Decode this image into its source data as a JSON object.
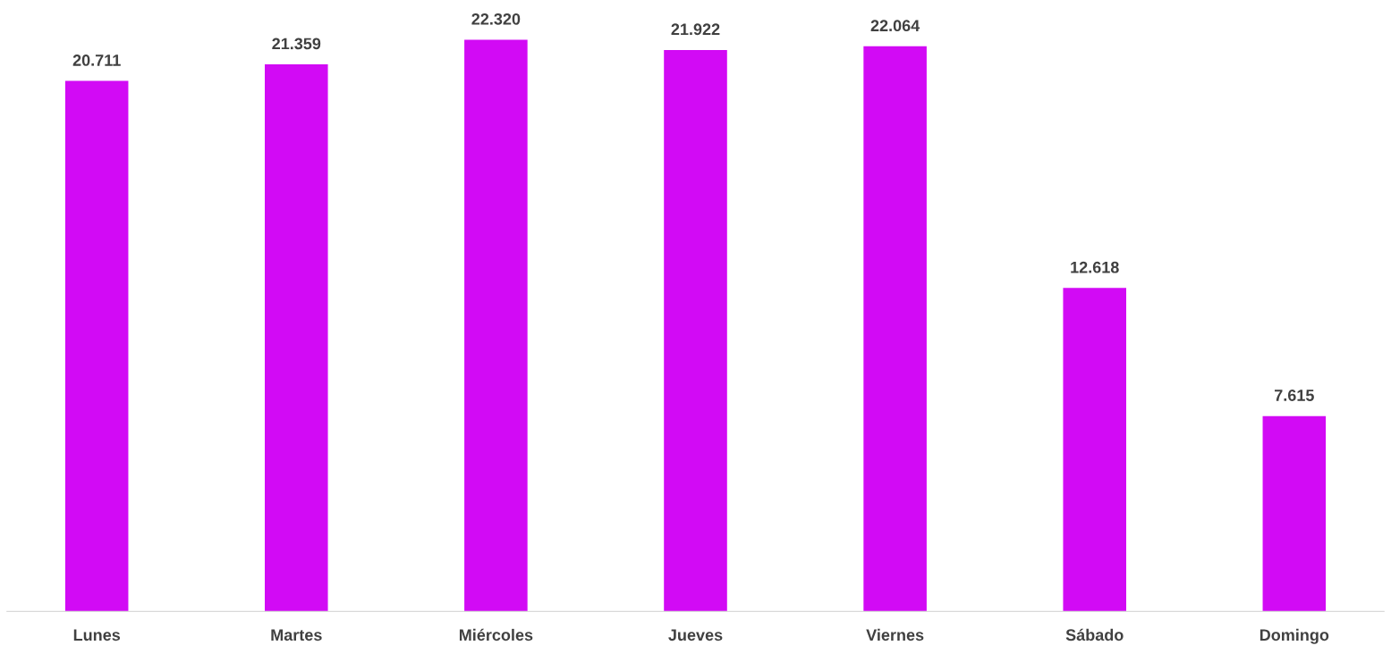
{
  "chart_data": {
    "type": "bar",
    "categories": [
      "Lunes",
      "Martes",
      "Miércoles",
      "Jueves",
      "Viernes",
      "Sábado",
      "Domingo"
    ],
    "values": [
      20711,
      21359,
      22320,
      21922,
      22064,
      12618,
      7615
    ],
    "value_labels": [
      "20.711",
      "21.359",
      "22.320",
      "21.922",
      "22.064",
      "12.618",
      "7.615"
    ],
    "color": "#d20af5",
    "grid": false,
    "legend": false
  }
}
